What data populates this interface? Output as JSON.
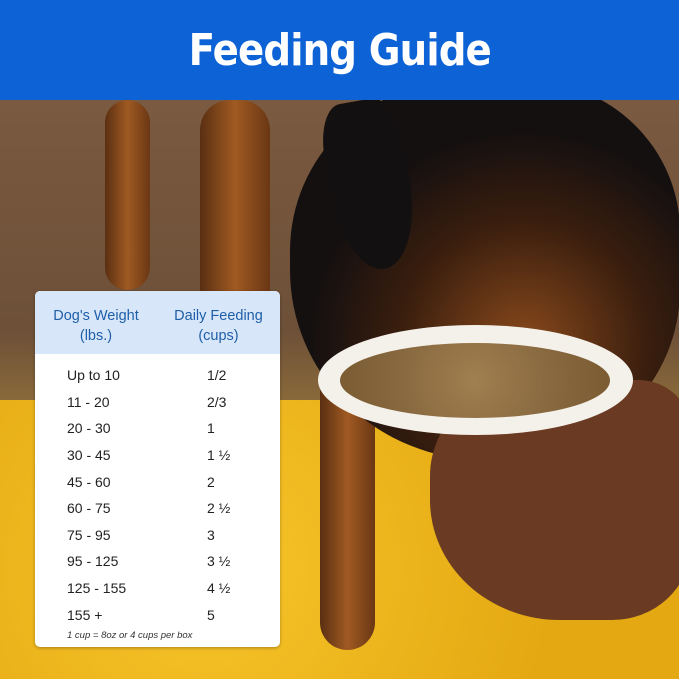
{
  "banner": {
    "title": "Feeding Guide",
    "color": "#0d63d6"
  },
  "table": {
    "headers": [
      {
        "line1": "Dog's Weight",
        "line2": "(lbs.)"
      },
      {
        "line1": "Daily Feeding",
        "line2": "(cups)"
      }
    ],
    "rows": [
      {
        "weight": "Up to 10",
        "cups": "1/2"
      },
      {
        "weight": "11 - 20",
        "cups": "2/3"
      },
      {
        "weight": "20 - 30",
        "cups": "1"
      },
      {
        "weight": "30 - 45",
        "cups": "1 ½"
      },
      {
        "weight": "45 - 60",
        "cups": "2"
      },
      {
        "weight": "60 - 75",
        "cups": "2 ½"
      },
      {
        "weight": "75 - 95",
        "cups": "3"
      },
      {
        "weight": "95 - 125",
        "cups": "3 ½"
      },
      {
        "weight": "125 - 155",
        "cups": "4 ½"
      },
      {
        "weight": "155 +",
        "cups": "5"
      }
    ],
    "note": "1 cup = 8oz or 4 cups per box"
  }
}
